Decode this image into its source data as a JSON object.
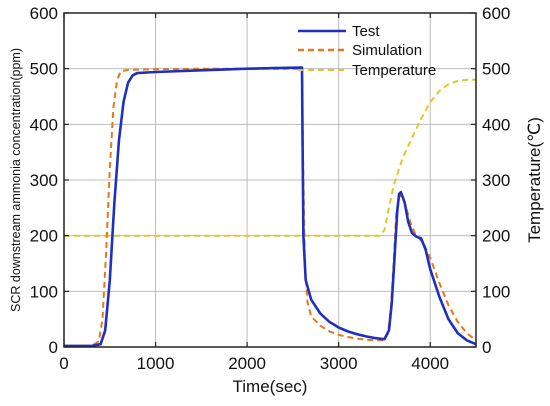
{
  "chart_data": {
    "type": "line",
    "xlabel": "Time(sec)",
    "ylabel": "SCR downstream ammonia concentration(ppm)",
    "ylabel_right": "Temperature(℃)",
    "xlim": [
      0,
      4500
    ],
    "ylim": [
      0,
      600
    ],
    "ylim_right": [
      0,
      600
    ],
    "x_ticks": [
      "0",
      "1000",
      "2000",
      "3000",
      "4000"
    ],
    "y_ticks": [
      "0",
      "100",
      "200",
      "300",
      "400",
      "500",
      "600"
    ],
    "y_ticks_right": [
      "0",
      "100",
      "200",
      "300",
      "400",
      "500",
      "600"
    ],
    "grid": true,
    "legend_position": "top-right",
    "series": [
      {
        "name": "Test",
        "color": "#1f2fbf",
        "style": "solid",
        "axis": "left",
        "points": [
          [
            0,
            2
          ],
          [
            300,
            2
          ],
          [
            400,
            5
          ],
          [
            450,
            30
          ],
          [
            500,
            120
          ],
          [
            550,
            260
          ],
          [
            600,
            370
          ],
          [
            650,
            440
          ],
          [
            700,
            475
          ],
          [
            750,
            488
          ],
          [
            800,
            492
          ],
          [
            1000,
            494
          ],
          [
            1500,
            497
          ],
          [
            2000,
            500
          ],
          [
            2300,
            501
          ],
          [
            2600,
            502
          ],
          [
            2605,
            380
          ],
          [
            2615,
            200
          ],
          [
            2640,
            120
          ],
          [
            2700,
            85
          ],
          [
            2800,
            60
          ],
          [
            2900,
            45
          ],
          [
            3000,
            35
          ],
          [
            3100,
            28
          ],
          [
            3200,
            23
          ],
          [
            3300,
            19
          ],
          [
            3400,
            16
          ],
          [
            3500,
            14
          ],
          [
            3550,
            30
          ],
          [
            3580,
            80
          ],
          [
            3610,
            160
          ],
          [
            3640,
            245
          ],
          [
            3660,
            275
          ],
          [
            3680,
            278
          ],
          [
            3720,
            260
          ],
          [
            3760,
            225
          ],
          [
            3800,
            205
          ],
          [
            3850,
            198
          ],
          [
            3900,
            195
          ],
          [
            3950,
            175
          ],
          [
            4000,
            140
          ],
          [
            4100,
            90
          ],
          [
            4200,
            50
          ],
          [
            4300,
            25
          ],
          [
            4400,
            12
          ],
          [
            4500,
            5
          ]
        ]
      },
      {
        "name": "Simulation",
        "color": "#e8771a",
        "style": "dashed",
        "axis": "left",
        "points": [
          [
            0,
            2
          ],
          [
            300,
            2
          ],
          [
            380,
            10
          ],
          [
            420,
            50
          ],
          [
            460,
            170
          ],
          [
            500,
            320
          ],
          [
            540,
            430
          ],
          [
            580,
            480
          ],
          [
            620,
            495
          ],
          [
            700,
            498
          ],
          [
            1000,
            499
          ],
          [
            1500,
            500
          ],
          [
            2000,
            500
          ],
          [
            2600,
            500
          ],
          [
            2610,
            350
          ],
          [
            2630,
            150
          ],
          [
            2660,
            80
          ],
          [
            2700,
            55
          ],
          [
            2800,
            38
          ],
          [
            2900,
            28
          ],
          [
            3000,
            22
          ],
          [
            3100,
            18
          ],
          [
            3200,
            15
          ],
          [
            3300,
            13
          ],
          [
            3400,
            12
          ],
          [
            3500,
            12
          ],
          [
            3540,
            25
          ],
          [
            3570,
            70
          ],
          [
            3600,
            150
          ],
          [
            3630,
            240
          ],
          [
            3660,
            270
          ],
          [
            3690,
            272
          ],
          [
            3730,
            255
          ],
          [
            3780,
            225
          ],
          [
            3830,
            205
          ],
          [
            3880,
            195
          ],
          [
            3930,
            185
          ],
          [
            4000,
            160
          ],
          [
            4100,
            115
          ],
          [
            4200,
            75
          ],
          [
            4300,
            45
          ],
          [
            4400,
            25
          ],
          [
            4500,
            12
          ]
        ]
      },
      {
        "name": "Temperature",
        "color": "#e2c62a",
        "style": "dashed",
        "axis": "right",
        "points": [
          [
            0,
            200
          ],
          [
            500,
            200
          ],
          [
            1000,
            200
          ],
          [
            1500,
            200
          ],
          [
            2000,
            200
          ],
          [
            2500,
            200
          ],
          [
            3000,
            200
          ],
          [
            3450,
            200
          ],
          [
            3500,
            210
          ],
          [
            3550,
            250
          ],
          [
            3600,
            290
          ],
          [
            3650,
            315
          ],
          [
            3700,
            340
          ],
          [
            3800,
            375
          ],
          [
            3900,
            410
          ],
          [
            4000,
            440
          ],
          [
            4100,
            460
          ],
          [
            4200,
            472
          ],
          [
            4300,
            478
          ],
          [
            4400,
            480
          ],
          [
            4500,
            480
          ]
        ]
      }
    ]
  }
}
